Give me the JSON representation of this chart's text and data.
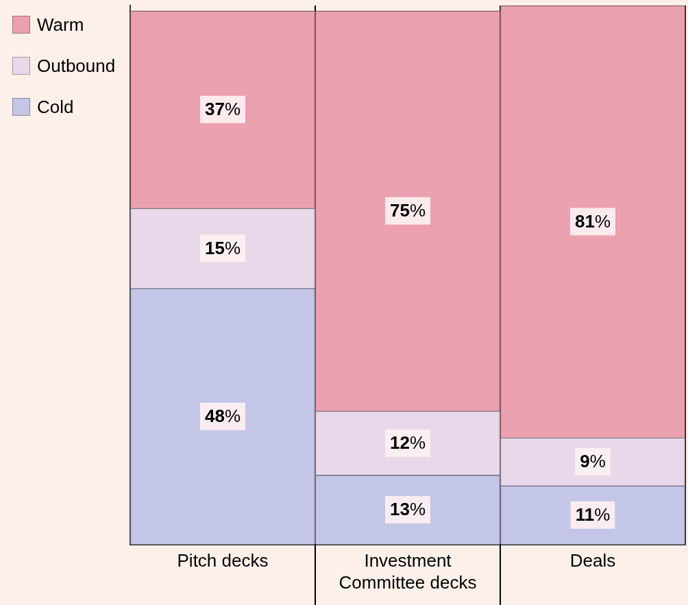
{
  "chart_data": {
    "type": "bar",
    "stacked": true,
    "categories": [
      "Pitch decks",
      "Investment Committee decks",
      "Deals"
    ],
    "series": [
      {
        "name": "Cold",
        "color": "#c3c6e6",
        "values": [
          48,
          13,
          11
        ],
        "value_labels": [
          "48%",
          "13%",
          "11%"
        ]
      },
      {
        "name": "Outbound",
        "color": "#e8d8e9",
        "values": [
          15,
          12,
          9
        ],
        "value_labels": [
          "15%",
          "12%",
          "9%"
        ]
      },
      {
        "name": "Warm",
        "color": "#eba1af",
        "values": [
          37,
          75,
          81
        ],
        "value_labels": [
          "37%",
          "75%",
          "81%"
        ]
      }
    ],
    "ylim": [
      0,
      101
    ],
    "tick_labels": "x",
    "grid": "x",
    "legend": "top left"
  }
}
